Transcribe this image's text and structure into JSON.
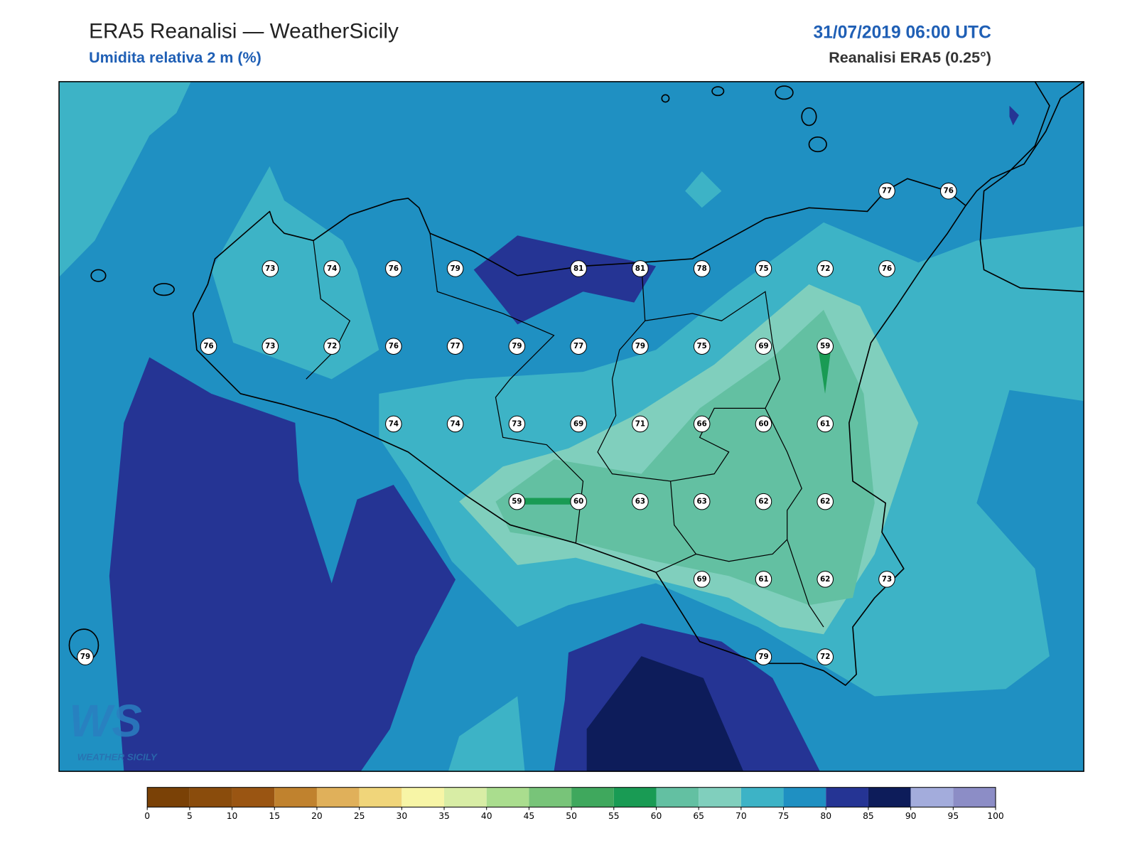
{
  "header": {
    "title": "ERA5 Reanalisi — WeatherSicily",
    "subtitle": "Umidita relativa 2 m (%)",
    "datetime": "31/07/2019 06:00 UTC",
    "source": "Reanalisi ERA5 (0.25°)"
  },
  "stations": [
    77,
    76,
    73,
    74,
    76,
    79,
    81,
    81,
    78,
    75,
    72,
    76,
    76,
    73,
    72,
    76,
    77,
    79,
    77,
    79,
    75,
    69,
    59,
    74,
    74,
    73,
    69,
    71,
    66,
    60,
    61,
    59,
    60,
    63,
    63,
    62,
    62,
    69,
    61,
    62,
    73,
    79,
    79,
    72
  ],
  "colorbar": {
    "ticks": [
      0,
      5,
      10,
      15,
      20,
      25,
      30,
      35,
      40,
      45,
      50,
      55,
      60,
      65,
      70,
      75,
      80,
      85,
      90,
      95,
      100
    ],
    "colors": [
      "#7a4106",
      "#8a4c0c",
      "#9a5512",
      "#c0822e",
      "#e0b05a",
      "#f0d57a",
      "#f7f5a6",
      "#d8eda5",
      "#aadd8e",
      "#78c479",
      "#3fa85d",
      "#199b54",
      "#63c0a2",
      "#80cfbd",
      "#3db3c6",
      "#1f90c2",
      "#253494",
      "#0d1c5a",
      "#a3acdc",
      "#8c8dc6"
    ]
  },
  "logo": {
    "mark": "WS",
    "text": "WEATHER SICILY"
  }
}
